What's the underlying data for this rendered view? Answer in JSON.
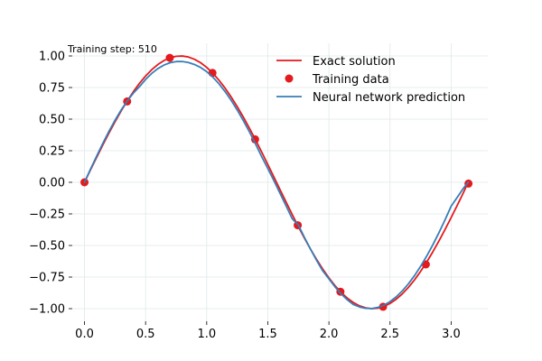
{
  "chart_data": {
    "type": "line",
    "title": "",
    "xlabel": "",
    "ylabel": "",
    "xlim": [
      -0.1,
      3.3
    ],
    "ylim": [
      -1.1,
      1.1
    ],
    "xticks": [
      0.0,
      0.5,
      1.0,
      1.5,
      2.0,
      2.5,
      3.0
    ],
    "xtick_labels": [
      "0.0",
      "0.5",
      "1.0",
      "1.5",
      "2.0",
      "2.5",
      "3.0"
    ],
    "yticks": [
      -1.0,
      -0.75,
      -0.5,
      -0.25,
      0.0,
      0.25,
      0.5,
      0.75,
      1.0
    ],
    "ytick_labels": [
      "−1.00",
      "−0.75",
      "−0.50",
      "−0.25",
      "0.00",
      "0.25",
      "0.50",
      "0.75",
      "1.00"
    ],
    "grid": true,
    "legend_position": "top-right",
    "annotation": "Training step: 510",
    "series": [
      {
        "name": "Exact solution",
        "kind": "line",
        "color": "#e41a1c",
        "x": [
          0.0,
          0.05,
          0.1,
          0.15,
          0.2,
          0.25,
          0.3,
          0.35,
          0.4,
          0.45,
          0.5,
          0.55,
          0.6,
          0.65,
          0.7,
          0.75,
          0.8,
          0.85,
          0.9,
          0.95,
          1.0,
          1.05,
          1.1,
          1.15,
          1.2,
          1.25,
          1.3,
          1.35,
          1.4,
          1.45,
          1.5,
          1.55,
          1.6,
          1.65,
          1.7,
          1.75,
          1.8,
          1.85,
          1.9,
          1.95,
          2.0,
          2.05,
          2.1,
          2.15,
          2.2,
          2.25,
          2.3,
          2.35,
          2.4,
          2.45,
          2.5,
          2.55,
          2.6,
          2.65,
          2.7,
          2.75,
          2.8,
          2.85,
          2.9,
          2.95,
          3.0,
          3.05,
          3.1,
          3.14
        ],
        "y": [
          0.0,
          0.0998,
          0.1987,
          0.2955,
          0.3894,
          0.4794,
          0.5646,
          0.6442,
          0.7174,
          0.7833,
          0.8415,
          0.8912,
          0.932,
          0.9636,
          0.9854,
          0.9975,
          0.9996,
          0.9917,
          0.9738,
          0.9463,
          0.9093,
          0.8632,
          0.8085,
          0.7457,
          0.6755,
          0.5985,
          0.5155,
          0.4274,
          0.335,
          0.2392,
          0.1411,
          0.0416,
          -0.0584,
          -0.1577,
          -0.2555,
          -0.3508,
          -0.4425,
          -0.5298,
          -0.6119,
          -0.6878,
          -0.7568,
          -0.8183,
          -0.8716,
          -0.9162,
          -0.9516,
          -0.9776,
          -0.9937,
          -1.0,
          -0.9962,
          -0.9825,
          -0.9589,
          -0.9258,
          -0.8835,
          -0.8323,
          -0.7728,
          -0.7055,
          -0.6313,
          -0.5507,
          -0.4646,
          -0.374,
          -0.2794,
          -0.1822,
          -0.0831,
          0.0032
        ]
      },
      {
        "name": "Training data",
        "kind": "scatter",
        "color": "#e41a1c",
        "x": [
          0.0,
          0.349,
          0.698,
          1.047,
          1.396,
          1.745,
          2.094,
          2.443,
          2.793,
          3.142
        ],
        "y": [
          0.0,
          0.64,
          0.985,
          0.866,
          0.34,
          -0.34,
          -0.866,
          -0.985,
          -0.65,
          -0.01
        ]
      },
      {
        "name": "Neural network prediction",
        "kind": "line",
        "color": "#377eb8",
        "x": [
          0.0,
          0.05,
          0.1,
          0.15,
          0.2,
          0.25,
          0.3,
          0.35,
          0.4,
          0.45,
          0.5,
          0.55,
          0.6,
          0.65,
          0.7,
          0.75,
          0.8,
          0.85,
          0.9,
          0.95,
          1.0,
          1.05,
          1.1,
          1.15,
          1.2,
          1.25,
          1.3,
          1.35,
          1.4,
          1.45,
          1.5,
          1.55,
          1.6,
          1.65,
          1.7,
          1.75,
          1.8,
          1.85,
          1.9,
          1.95,
          2.0,
          2.05,
          2.1,
          2.15,
          2.2,
          2.25,
          2.3,
          2.35,
          2.4,
          2.45,
          2.5,
          2.55,
          2.6,
          2.65,
          2.7,
          2.75,
          2.8,
          2.85,
          2.9,
          2.95,
          3.0,
          3.05,
          3.1,
          3.14
        ],
        "y": [
          0.0,
          0.1049,
          0.2081,
          0.308,
          0.403,
          0.4916,
          0.5723,
          0.6441,
          0.7059,
          0.7572,
          0.8142,
          0.8618,
          0.8997,
          0.9279,
          0.9464,
          0.9557,
          0.956,
          0.948,
          0.9322,
          0.9091,
          0.8758,
          0.8326,
          0.78,
          0.7185,
          0.6489,
          0.5717,
          0.4878,
          0.3982,
          0.3029,
          0.2026,
          0.1092,
          0.0123,
          -0.087,
          -0.1876,
          -0.2886,
          -0.3388,
          -0.4365,
          -0.5303,
          -0.6191,
          -0.7018,
          -0.7641,
          -0.8276,
          -0.883,
          -0.9297,
          -0.9671,
          -0.9862,
          -0.9975,
          -0.9989,
          -0.9906,
          -0.9725,
          -0.9446,
          -0.9071,
          -0.8601,
          -0.8039,
          -0.7389,
          -0.6655,
          -0.5841,
          -0.4952,
          -0.3994,
          -0.2973,
          -0.1896,
          -0.119,
          -0.0474,
          0.0
        ]
      }
    ]
  }
}
